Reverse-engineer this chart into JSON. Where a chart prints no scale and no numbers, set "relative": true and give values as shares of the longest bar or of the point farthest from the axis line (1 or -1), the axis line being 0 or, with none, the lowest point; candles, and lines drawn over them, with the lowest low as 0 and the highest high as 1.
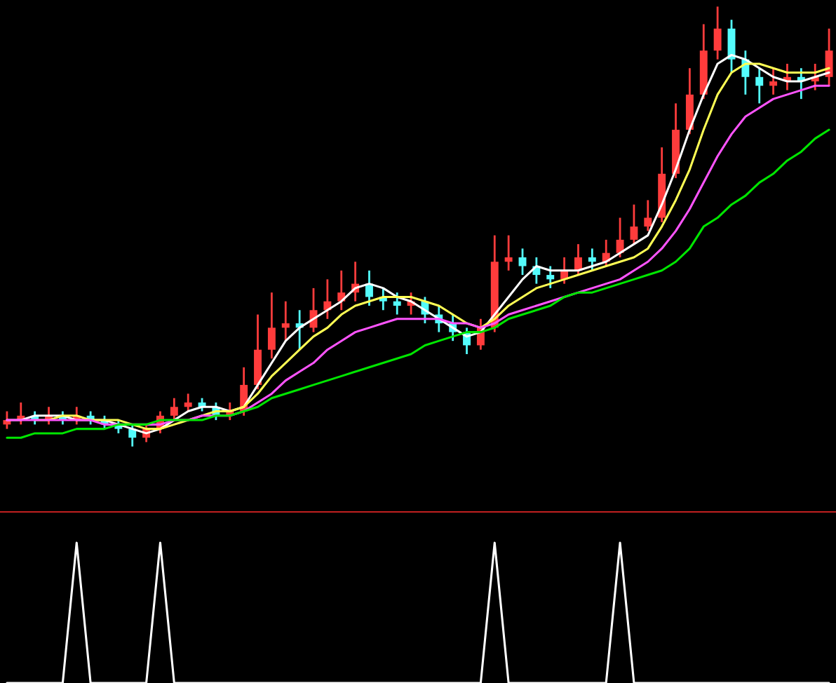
{
  "chart_data": [
    {
      "type": "candlestick",
      "relative": true,
      "categories": [
        null,
        null,
        null,
        null,
        null,
        null,
        null,
        null,
        null,
        null,
        null,
        null,
        null,
        null,
        null,
        null,
        null,
        null,
        null,
        null,
        null,
        null,
        null,
        null,
        null,
        null,
        null,
        null,
        null,
        null,
        null,
        null,
        null,
        null,
        null,
        null,
        null,
        null,
        null,
        null,
        null,
        null,
        null,
        null,
        null,
        null,
        null,
        null,
        null,
        null,
        null,
        null,
        null,
        null,
        null,
        null,
        null,
        null,
        null,
        null
      ],
      "ohlc": [
        [
          0.05,
          0.08,
          0.04,
          0.06
        ],
        [
          0.06,
          0.1,
          0.05,
          0.07
        ],
        [
          0.07,
          0.08,
          0.05,
          0.06
        ],
        [
          0.06,
          0.09,
          0.05,
          0.07
        ],
        [
          0.07,
          0.08,
          0.05,
          0.06
        ],
        [
          0.06,
          0.09,
          0.05,
          0.07
        ],
        [
          0.07,
          0.08,
          0.05,
          0.06
        ],
        [
          0.06,
          0.07,
          0.04,
          0.05
        ],
        [
          0.05,
          0.06,
          0.03,
          0.04
        ],
        [
          0.04,
          0.05,
          0.0,
          0.02
        ],
        [
          0.02,
          0.05,
          0.01,
          0.04
        ],
        [
          0.04,
          0.08,
          0.03,
          0.07
        ],
        [
          0.07,
          0.11,
          0.06,
          0.09
        ],
        [
          0.09,
          0.12,
          0.08,
          0.1
        ],
        [
          0.1,
          0.11,
          0.08,
          0.09
        ],
        [
          0.09,
          0.1,
          0.06,
          0.07
        ],
        [
          0.07,
          0.1,
          0.06,
          0.08
        ],
        [
          0.08,
          0.18,
          0.07,
          0.14
        ],
        [
          0.14,
          0.3,
          0.13,
          0.22
        ],
        [
          0.22,
          0.35,
          0.2,
          0.27
        ],
        [
          0.27,
          0.33,
          0.24,
          0.28
        ],
        [
          0.28,
          0.31,
          0.22,
          0.27
        ],
        [
          0.27,
          0.36,
          0.26,
          0.31
        ],
        [
          0.31,
          0.38,
          0.29,
          0.33
        ],
        [
          0.33,
          0.4,
          0.31,
          0.35
        ],
        [
          0.35,
          0.42,
          0.33,
          0.37
        ],
        [
          0.37,
          0.4,
          0.32,
          0.34
        ],
        [
          0.34,
          0.36,
          0.31,
          0.33
        ],
        [
          0.33,
          0.35,
          0.3,
          0.32
        ],
        [
          0.32,
          0.35,
          0.3,
          0.33
        ],
        [
          0.33,
          0.34,
          0.28,
          0.3
        ],
        [
          0.3,
          0.32,
          0.26,
          0.28
        ],
        [
          0.28,
          0.3,
          0.24,
          0.26
        ],
        [
          0.26,
          0.27,
          0.21,
          0.23
        ],
        [
          0.23,
          0.29,
          0.22,
          0.27
        ],
        [
          0.27,
          0.48,
          0.26,
          0.42
        ],
        [
          0.42,
          0.48,
          0.4,
          0.43
        ],
        [
          0.43,
          0.45,
          0.39,
          0.41
        ],
        [
          0.41,
          0.43,
          0.37,
          0.39
        ],
        [
          0.39,
          0.41,
          0.36,
          0.38
        ],
        [
          0.38,
          0.43,
          0.37,
          0.4
        ],
        [
          0.4,
          0.46,
          0.39,
          0.43
        ],
        [
          0.43,
          0.45,
          0.4,
          0.42
        ],
        [
          0.42,
          0.47,
          0.41,
          0.44
        ],
        [
          0.44,
          0.52,
          0.43,
          0.47
        ],
        [
          0.47,
          0.55,
          0.46,
          0.5
        ],
        [
          0.5,
          0.56,
          0.49,
          0.52
        ],
        [
          0.52,
          0.68,
          0.51,
          0.62
        ],
        [
          0.62,
          0.78,
          0.61,
          0.72
        ],
        [
          0.72,
          0.86,
          0.71,
          0.8
        ],
        [
          0.8,
          0.96,
          0.79,
          0.9
        ],
        [
          0.9,
          1.0,
          0.88,
          0.95
        ],
        [
          0.95,
          0.97,
          0.85,
          0.88
        ],
        [
          0.88,
          0.9,
          0.8,
          0.84
        ],
        [
          0.84,
          0.86,
          0.78,
          0.82
        ],
        [
          0.82,
          0.86,
          0.8,
          0.83
        ],
        [
          0.83,
          0.87,
          0.81,
          0.84
        ],
        [
          0.84,
          0.86,
          0.79,
          0.83
        ],
        [
          0.83,
          0.87,
          0.81,
          0.84
        ],
        [
          0.84,
          0.95,
          0.82,
          0.9
        ]
      ],
      "colors": [
        "#ff3c3c",
        "#ff3c3c",
        "#54fcfc",
        "#ff3c3c",
        "#54fcfc",
        "#ff3c3c",
        "#54fcfc",
        "#54fcfc",
        "#54fcfc",
        "#54fcfc",
        "#ff3c3c",
        "#ff3c3c",
        "#ff3c3c",
        "#ff3c3c",
        "#54fcfc",
        "#54fcfc",
        "#ff3c3c",
        "#ff3c3c",
        "#ff3c3c",
        "#ff3c3c",
        "#ff3c3c",
        "#54fcfc",
        "#ff3c3c",
        "#ff3c3c",
        "#ff3c3c",
        "#ff3c3c",
        "#54fcfc",
        "#54fcfc",
        "#54fcfc",
        "#ff3c3c",
        "#54fcfc",
        "#54fcfc",
        "#54fcfc",
        "#54fcfc",
        "#ff3c3c",
        "#ff3c3c",
        "#ff3c3c",
        "#54fcfc",
        "#54fcfc",
        "#54fcfc",
        "#ff3c3c",
        "#ff3c3c",
        "#54fcfc",
        "#ff3c3c",
        "#ff3c3c",
        "#ff3c3c",
        "#ff3c3c",
        "#ff3c3c",
        "#ff3c3c",
        "#ff3c3c",
        "#ff3c3c",
        "#ff3c3c",
        "#54fcfc",
        "#54fcfc",
        "#54fcfc",
        "#ff3c3c",
        "#ff3c3c",
        "#54fcfc",
        "#ff3c3c",
        "#ff3c3c"
      ],
      "series": [
        {
          "type": "line",
          "color": "#ffffff",
          "values": [
            0.06,
            0.06,
            0.07,
            0.07,
            0.07,
            0.06,
            0.06,
            0.06,
            0.05,
            0.04,
            0.03,
            0.04,
            0.06,
            0.08,
            0.09,
            0.09,
            0.08,
            0.09,
            0.14,
            0.19,
            0.24,
            0.27,
            0.29,
            0.31,
            0.33,
            0.36,
            0.37,
            0.36,
            0.34,
            0.33,
            0.31,
            0.29,
            0.27,
            0.25,
            0.26,
            0.3,
            0.34,
            0.38,
            0.41,
            0.4,
            0.4,
            0.4,
            0.41,
            0.42,
            0.44,
            0.46,
            0.48,
            0.55,
            0.63,
            0.72,
            0.8,
            0.87,
            0.89,
            0.88,
            0.86,
            0.84,
            0.83,
            0.83,
            0.84,
            0.85
          ]
        },
        {
          "type": "line",
          "color": "#ffff54",
          "values": [
            null,
            null,
            0.06,
            0.06,
            0.07,
            0.07,
            0.06,
            0.06,
            0.06,
            0.05,
            0.04,
            0.04,
            0.05,
            0.06,
            0.07,
            0.08,
            0.08,
            0.09,
            0.12,
            0.16,
            0.19,
            0.22,
            0.25,
            0.27,
            0.3,
            0.32,
            0.33,
            0.34,
            0.34,
            0.34,
            0.33,
            0.32,
            0.3,
            0.28,
            0.27,
            0.29,
            0.32,
            0.34,
            0.36,
            0.37,
            0.38,
            0.39,
            0.4,
            0.41,
            0.42,
            0.43,
            0.45,
            0.5,
            0.56,
            0.63,
            0.72,
            0.8,
            0.85,
            0.87,
            0.87,
            0.86,
            0.85,
            0.85,
            0.85,
            0.86
          ]
        },
        {
          "type": "line",
          "color": "#ff54ff",
          "values": [
            0.06,
            0.06,
            0.06,
            0.06,
            0.06,
            0.06,
            0.06,
            0.05,
            0.05,
            0.05,
            0.05,
            0.05,
            0.06,
            0.06,
            0.07,
            0.07,
            0.07,
            0.08,
            0.1,
            0.12,
            0.15,
            0.17,
            0.19,
            0.22,
            0.24,
            0.26,
            0.27,
            0.28,
            0.29,
            0.29,
            0.29,
            0.29,
            0.28,
            0.28,
            0.27,
            0.28,
            0.3,
            0.31,
            0.32,
            0.33,
            0.34,
            0.35,
            0.36,
            0.37,
            0.38,
            0.4,
            0.42,
            0.45,
            0.49,
            0.54,
            0.6,
            0.66,
            0.71,
            0.75,
            0.77,
            0.79,
            0.8,
            0.81,
            0.82,
            0.82
          ]
        },
        {
          "type": "line",
          "color": "#00e600",
          "values": [
            0.02,
            0.02,
            0.03,
            0.03,
            0.03,
            0.04,
            0.04,
            0.04,
            0.05,
            0.05,
            0.05,
            0.06,
            0.06,
            0.06,
            0.06,
            0.07,
            0.07,
            0.08,
            0.09,
            0.11,
            0.12,
            0.13,
            0.14,
            0.15,
            0.16,
            0.17,
            0.18,
            0.19,
            0.2,
            0.21,
            0.23,
            0.24,
            0.25,
            0.26,
            0.26,
            0.27,
            0.29,
            0.3,
            0.31,
            0.32,
            0.34,
            0.35,
            0.35,
            0.36,
            0.37,
            0.38,
            0.39,
            0.4,
            0.42,
            0.45,
            0.5,
            0.52,
            0.55,
            0.57,
            0.6,
            0.62,
            0.65,
            0.67,
            0.7,
            0.72
          ]
        }
      ]
    },
    {
      "type": "line",
      "relative": true,
      "categories": [
        null,
        null,
        null,
        null,
        null,
        null,
        null,
        null,
        null,
        null,
        null,
        null,
        null,
        null,
        null,
        null,
        null,
        null,
        null,
        null,
        null,
        null,
        null,
        null,
        null,
        null,
        null,
        null,
        null,
        null,
        null,
        null,
        null,
        null,
        null,
        null,
        null,
        null,
        null,
        null,
        null,
        null,
        null,
        null,
        null,
        null,
        null,
        null,
        null,
        null,
        null,
        null,
        null,
        null,
        null,
        null,
        null,
        null,
        null,
        null
      ],
      "series": [
        {
          "color": "#ffffff",
          "values": [
            0,
            0,
            0,
            0,
            0,
            1,
            0,
            0,
            0,
            0,
            0,
            1,
            0,
            0,
            0,
            0,
            0,
            0,
            0,
            0,
            0,
            0,
            0,
            0,
            0,
            0,
            0,
            0,
            0,
            0,
            0,
            0,
            0,
            0,
            0,
            1,
            0,
            0,
            0,
            0,
            0,
            0,
            0,
            0,
            1,
            0,
            0,
            0,
            0,
            0,
            0,
            0,
            0,
            0,
            0,
            0,
            0,
            0,
            0,
            0
          ]
        }
      ]
    }
  ]
}
